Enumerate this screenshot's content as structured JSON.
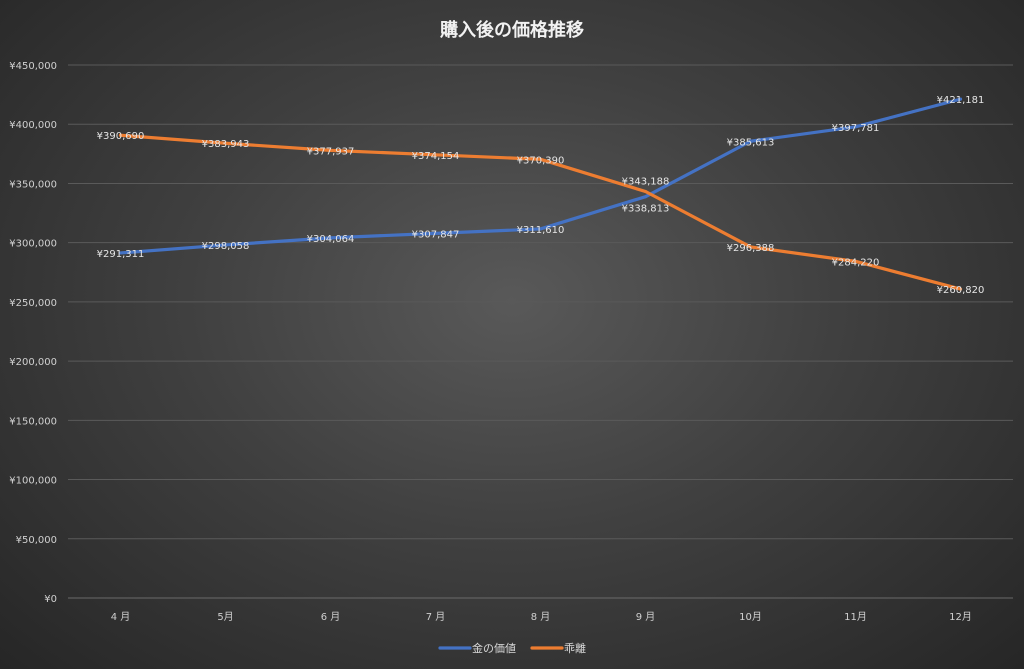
{
  "chart_data": {
    "type": "line",
    "title": "購入後の価格推移",
    "xlabel": "",
    "ylabel": "",
    "categories": [
      "4 月",
      "5月",
      "6 月",
      "7 月",
      "8 月",
      "9 月",
      "10月",
      "11月",
      "12月"
    ],
    "series": [
      {
        "name": "金の価値",
        "color": "#4472c4",
        "values": [
          291311,
          298058,
          304064,
          307847,
          311610,
          338813,
          385613,
          397781,
          421181
        ],
        "labels": [
          "¥291,311",
          "¥298,058",
          "¥304,064",
          "¥307,847",
          "¥311,610",
          "¥338,813",
          "¥385,613",
          "¥397,781",
          "¥421,181"
        ]
      },
      {
        "name": "乖離",
        "color": "#ed7d31",
        "values": [
          390690,
          383943,
          377937,
          374154,
          370390,
          343188,
          296388,
          284220,
          260820
        ],
        "labels": [
          "¥390,690",
          "¥383,943",
          "¥377,937",
          "¥374,154",
          "¥370,390",
          "¥343,188",
          "¥296,388",
          "¥284,220",
          "¥260,820"
        ]
      }
    ],
    "ylim": [
      0,
      450000
    ],
    "yticks": [
      0,
      50000,
      100000,
      150000,
      200000,
      250000,
      300000,
      350000,
      400000,
      450000
    ],
    "ytick_labels": [
      "¥0",
      "¥50,000",
      "¥100,000",
      "¥150,000",
      "¥200,000",
      "¥250,000",
      "¥300,000",
      "¥350,000",
      "¥400,000",
      "¥450,000"
    ],
    "grid": true,
    "legend": "bottom"
  }
}
